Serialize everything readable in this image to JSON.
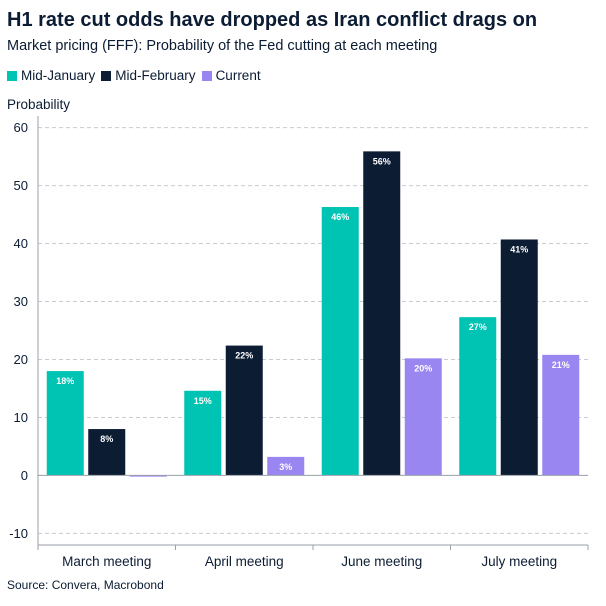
{
  "chart_data": {
    "type": "bar",
    "title": "H1 rate cut odds have dropped as Iran conflict drags on",
    "subtitle": "Market pricing (FFF): Probability of the Fed cutting at each meeting",
    "ylabel": "Probability",
    "source": "Source: Convera, Macrobond",
    "categories": [
      "March meeting",
      "April meeting",
      "June meeting",
      "July meeting"
    ],
    "ylim": [
      -12,
      62
    ],
    "yticks": [
      -10,
      0,
      10,
      20,
      30,
      40,
      50,
      60
    ],
    "grid": true,
    "legend_position": "top-left",
    "series": [
      {
        "name": "Mid-January",
        "color": "#00c4b3",
        "values": [
          18,
          14.6,
          46.3,
          27.3
        ],
        "labels": [
          "18%",
          "15%",
          "46%",
          "27%"
        ]
      },
      {
        "name": "Mid-February",
        "color": "#0b1c33",
        "values": [
          8,
          22.4,
          55.9,
          40.7
        ],
        "labels": [
          "8%",
          "22%",
          "56%",
          "41%"
        ]
      },
      {
        "name": "Current",
        "color": "#9a86f0",
        "values": [
          -0.2,
          3.2,
          20.2,
          20.8
        ],
        "labels": [
          "",
          "3%",
          "20%",
          "21%"
        ]
      }
    ]
  }
}
